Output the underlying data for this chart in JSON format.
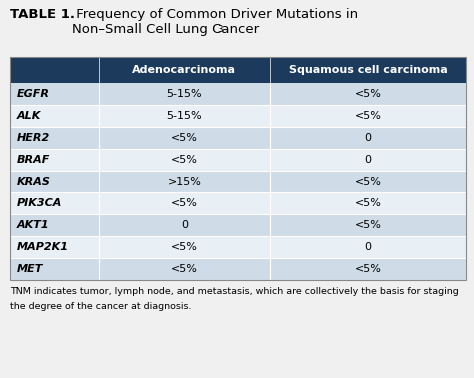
{
  "title_bold": "TABLE 1.",
  "title_rest": " Frequency of Common Driver Mutations in\nNon–Small Cell Lung Cancer",
  "title_superscript": "3",
  "header_col1": "Adenocarcinoma",
  "header_col2": "Squamous cell carcinoma",
  "header_bg": "#1b3a5c",
  "header_text_color": "#ffffff",
  "rows": [
    [
      "EGFR",
      "5-15%",
      "<5%"
    ],
    [
      "ALK",
      "5-15%",
      "<5%"
    ],
    [
      "HER2",
      "<5%",
      "0"
    ],
    [
      "BRAF",
      "<5%",
      "0"
    ],
    [
      "KRAS",
      ">15%",
      "<5%"
    ],
    [
      "PIK3CA",
      "<5%",
      "<5%"
    ],
    [
      "AKT1",
      "0",
      "<5%"
    ],
    [
      "MAP2K1",
      "<5%",
      "0"
    ],
    [
      "MET",
      "<5%",
      "<5%"
    ]
  ],
  "row_bg_even": "#cfdce8",
  "row_bg_odd": "#e8eff5",
  "footnote_line1": "TNM indicates tumor, lymph node, and metastasis, which are collectively the basis for staging",
  "footnote_line2": "the degree of the cancer at diagnosis.",
  "bg_color": "#f0f0f0",
  "divider_color": "#ffffff",
  "outer_border_color": "#888888",
  "fig_width": 4.74,
  "fig_height": 3.78,
  "dpi": 100
}
